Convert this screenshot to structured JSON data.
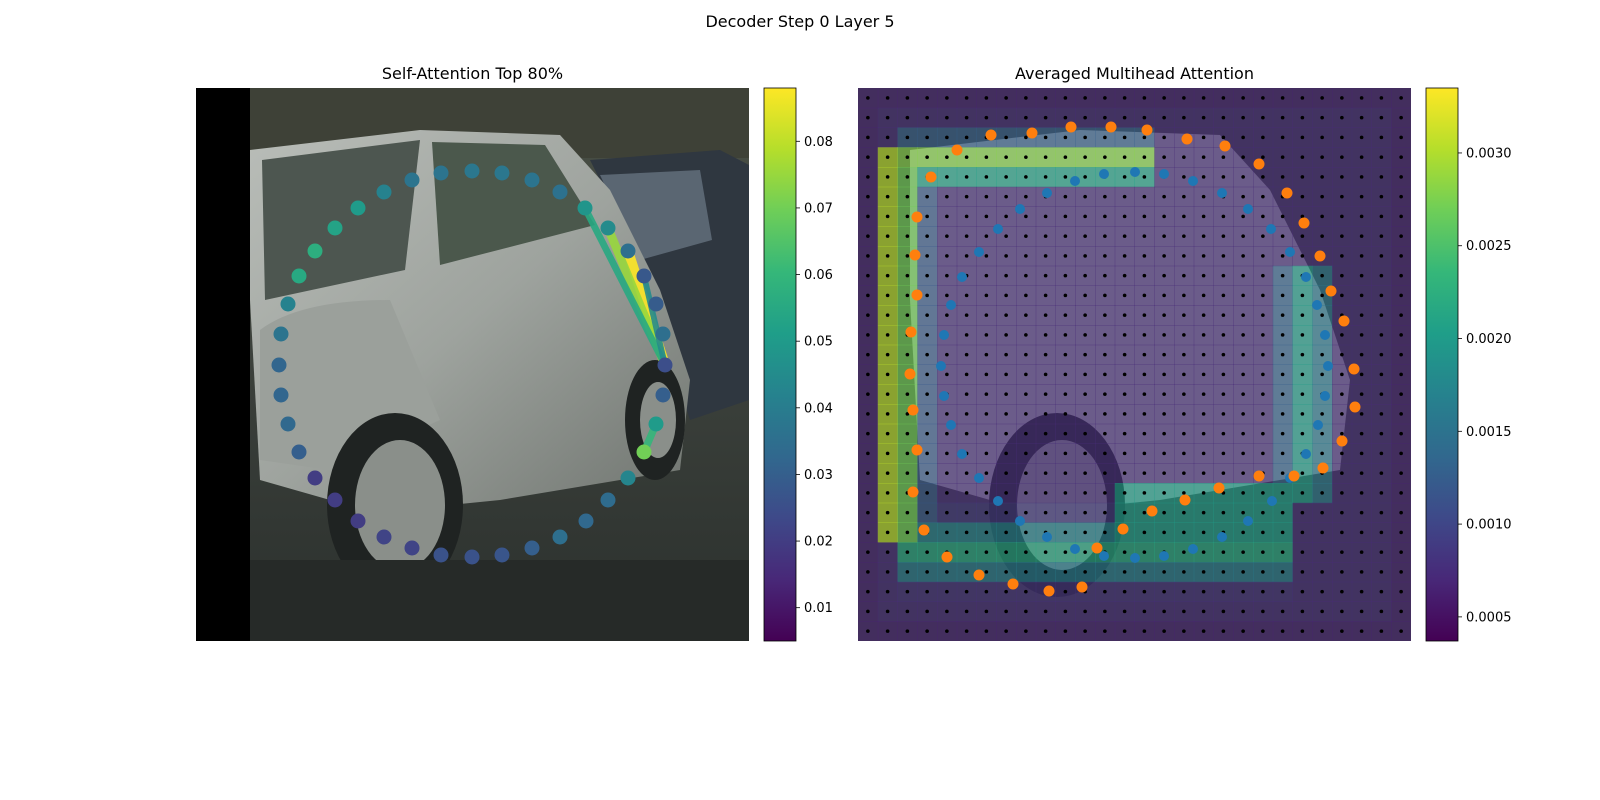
{
  "figure": {
    "suptitle": "Decoder Step 0 Layer 5"
  },
  "colors": {
    "viridis": [
      "#440154",
      "#482878",
      "#3e4989",
      "#31688e",
      "#26828e",
      "#1f9e89",
      "#35b779",
      "#6ece58",
      "#b5de2b",
      "#fde725"
    ],
    "orange_points": "#ff7f0e",
    "blue_points": "#1f77b4",
    "grid_dots": "#000000"
  },
  "chart_data": [
    {
      "type": "scatter",
      "title": "Self-Attention Top 80%",
      "background": "photo-of-silver-car",
      "colorbar": {
        "ticks": [
          "0.01",
          "0.02",
          "0.03",
          "0.04",
          "0.05",
          "0.06",
          "0.07",
          "0.08"
        ],
        "range": [
          0.005,
          0.088
        ]
      },
      "points": [
        {
          "x": 412,
          "y": 180,
          "v": 0.037
        },
        {
          "x": 441,
          "y": 173,
          "v": 0.037
        },
        {
          "x": 472,
          "y": 171,
          "v": 0.038
        },
        {
          "x": 502,
          "y": 173,
          "v": 0.038
        },
        {
          "x": 532,
          "y": 180,
          "v": 0.037
        },
        {
          "x": 560,
          "y": 192,
          "v": 0.036
        },
        {
          "x": 585,
          "y": 208,
          "v": 0.048
        },
        {
          "x": 608,
          "y": 228,
          "v": 0.045
        },
        {
          "x": 628,
          "y": 251,
          "v": 0.035
        },
        {
          "x": 644,
          "y": 276,
          "v": 0.028
        },
        {
          "x": 656,
          "y": 304,
          "v": 0.029
        },
        {
          "x": 663,
          "y": 334,
          "v": 0.035
        },
        {
          "x": 665,
          "y": 365,
          "v": 0.025
        },
        {
          "x": 663,
          "y": 395,
          "v": 0.03
        },
        {
          "x": 656,
          "y": 424,
          "v": 0.05
        },
        {
          "x": 644,
          "y": 452,
          "v": 0.07
        },
        {
          "x": 628,
          "y": 478,
          "v": 0.043
        },
        {
          "x": 608,
          "y": 500,
          "v": 0.034
        },
        {
          "x": 586,
          "y": 521,
          "v": 0.033
        },
        {
          "x": 560,
          "y": 537,
          "v": 0.035
        },
        {
          "x": 532,
          "y": 548,
          "v": 0.03
        },
        {
          "x": 502,
          "y": 555,
          "v": 0.027
        },
        {
          "x": 472,
          "y": 557,
          "v": 0.026
        },
        {
          "x": 441,
          "y": 555,
          "v": 0.026
        },
        {
          "x": 412,
          "y": 548,
          "v": 0.022
        },
        {
          "x": 384,
          "y": 537,
          "v": 0.022
        },
        {
          "x": 358,
          "y": 521,
          "v": 0.02
        },
        {
          "x": 335,
          "y": 500,
          "v": 0.02
        },
        {
          "x": 315,
          "y": 478,
          "v": 0.02
        },
        {
          "x": 299,
          "y": 452,
          "v": 0.03
        },
        {
          "x": 288,
          "y": 424,
          "v": 0.033
        },
        {
          "x": 281,
          "y": 395,
          "v": 0.032
        },
        {
          "x": 279,
          "y": 365,
          "v": 0.032
        },
        {
          "x": 281,
          "y": 334,
          "v": 0.037
        },
        {
          "x": 288,
          "y": 304,
          "v": 0.042
        },
        {
          "x": 299,
          "y": 276,
          "v": 0.055
        },
        {
          "x": 315,
          "y": 251,
          "v": 0.057
        },
        {
          "x": 335,
          "y": 228,
          "v": 0.053
        },
        {
          "x": 358,
          "y": 208,
          "v": 0.05
        },
        {
          "x": 384,
          "y": 192,
          "v": 0.042
        }
      ],
      "attention_lines": [
        {
          "from": [
            665,
            365
          ],
          "to": [
            628,
            251
          ],
          "v": 0.088
        },
        {
          "from": [
            665,
            365
          ],
          "to": [
            608,
            228
          ],
          "v": 0.075
        },
        {
          "from": [
            665,
            365
          ],
          "to": [
            585,
            208
          ],
          "v": 0.055
        },
        {
          "from": [
            665,
            365
          ],
          "to": [
            644,
            276
          ],
          "v": 0.045
        },
        {
          "from": [
            656,
            424
          ],
          "to": [
            644,
            452
          ],
          "v": 0.06
        }
      ]
    },
    {
      "type": "heatmap",
      "title": "Averaged Multihead Attention",
      "background": "photo-of-silver-car",
      "grid": {
        "rows": 28,
        "cols": 28
      },
      "colorbar": {
        "ticks": [
          "0.0005",
          "0.0010",
          "0.0015",
          "0.0020",
          "0.0025",
          "0.0030"
        ],
        "range": [
          0.00037,
          0.00335
        ]
      },
      "orange_points": [
        [
          991,
          135
        ],
        [
          1032,
          133
        ],
        [
          1071,
          127
        ],
        [
          1111,
          127
        ],
        [
          1147,
          130
        ],
        [
          1187,
          139
        ],
        [
          1225,
          146
        ],
        [
          1259,
          164
        ],
        [
          1287,
          193
        ],
        [
          1304,
          223
        ],
        [
          1320,
          256
        ],
        [
          1331,
          291
        ],
        [
          1344,
          321
        ],
        [
          1354,
          369
        ],
        [
          1355,
          407
        ],
        [
          1342,
          441
        ],
        [
          1323,
          468
        ],
        [
          1294,
          476
        ],
        [
          1259,
          476
        ],
        [
          1219,
          488
        ],
        [
          1185,
          500
        ],
        [
          1152,
          511
        ],
        [
          1123,
          529
        ],
        [
          1097,
          548
        ],
        [
          1082,
          587
        ],
        [
          1049,
          591
        ],
        [
          1013,
          584
        ],
        [
          979,
          575
        ],
        [
          947,
          557
        ],
        [
          924,
          530
        ],
        [
          913,
          492
        ],
        [
          917,
          450
        ],
        [
          913,
          410
        ],
        [
          910,
          374
        ],
        [
          911,
          332
        ],
        [
          917,
          295
        ],
        [
          915,
          255
        ],
        [
          917,
          217
        ],
        [
          931,
          177
        ],
        [
          957,
          150
        ]
      ],
      "blue_points": [
        [
          1020,
          209
        ],
        [
          1047,
          193
        ],
        [
          1075,
          181
        ],
        [
          1104,
          174
        ],
        [
          1135,
          172
        ],
        [
          1164,
          174
        ],
        [
          1193,
          181
        ],
        [
          1222,
          193
        ],
        [
          1248,
          209
        ],
        [
          1271,
          229
        ],
        [
          1290,
          252
        ],
        [
          1306,
          277
        ],
        [
          1317,
          305
        ],
        [
          1325,
          335
        ],
        [
          1328,
          366
        ],
        [
          1325,
          396
        ],
        [
          1318,
          425
        ],
        [
          1306,
          454
        ],
        [
          1290,
          478
        ],
        [
          1272,
          501
        ],
        [
          1248,
          521
        ],
        [
          1222,
          537
        ],
        [
          1193,
          549
        ],
        [
          1164,
          556
        ],
        [
          1135,
          558
        ],
        [
          1104,
          556
        ],
        [
          1075,
          549
        ],
        [
          1047,
          537
        ],
        [
          1020,
          521
        ],
        [
          998,
          501
        ],
        [
          979,
          478
        ],
        [
          962,
          454
        ],
        [
          951,
          425
        ],
        [
          944,
          396
        ],
        [
          941,
          366
        ],
        [
          944,
          335
        ],
        [
          951,
          305
        ],
        [
          962,
          277
        ],
        [
          979,
          252
        ],
        [
          998,
          229
        ]
      ]
    }
  ]
}
